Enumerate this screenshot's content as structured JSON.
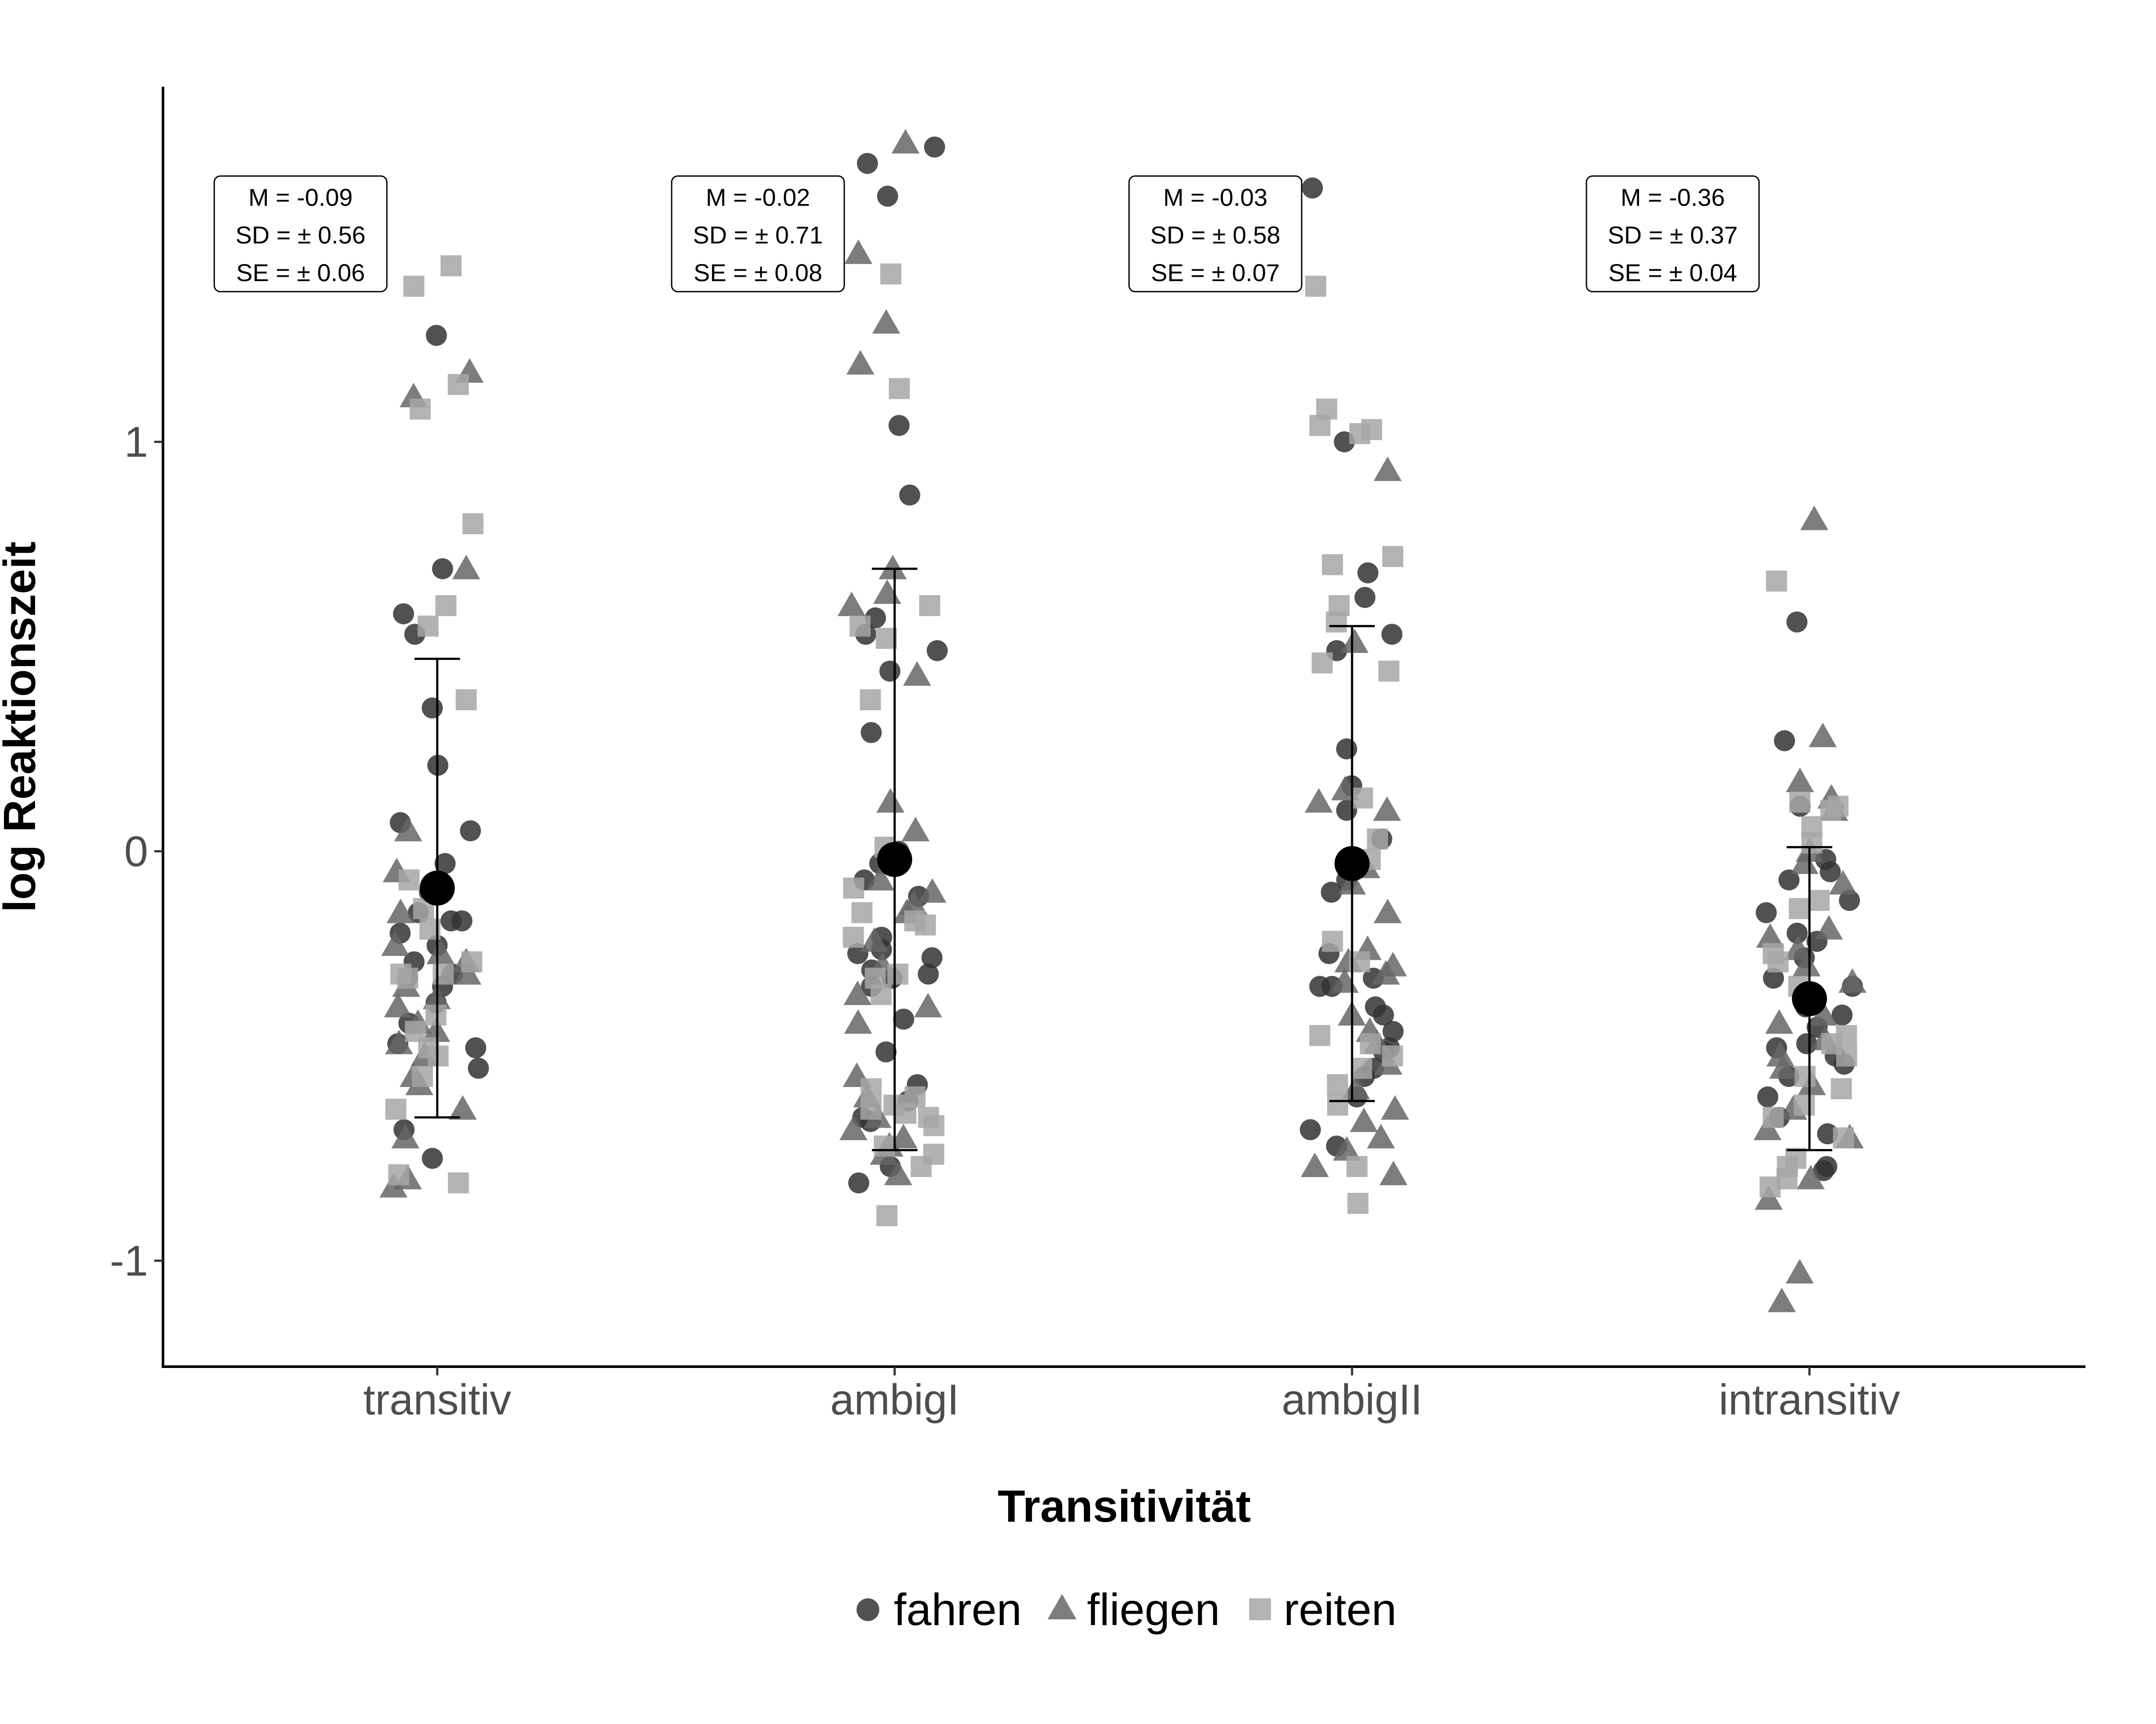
{
  "chart_data": {
    "type": "scatter",
    "xlabel": "Transitivität",
    "ylabel": "log Reaktionszeit",
    "categories": [
      "transitiv",
      "ambigI",
      "ambigII",
      "intransitiv"
    ],
    "yticks": [
      -1,
      0,
      1
    ],
    "ytick_labels": [
      "-1",
      "0",
      "1"
    ],
    "ylim": [
      -1.25,
      1.85
    ],
    "grid": false,
    "legend_position": "bottom",
    "colors": {
      "fahren": "#333333",
      "fliegen": "#666666",
      "reiten": "#a6a6a6",
      "mean": "#000000"
    },
    "series": [
      {
        "name": "fahren",
        "shape": "circle",
        "values": [
          [
            1.26,
            0.69,
            0.58,
            0.53,
            0.35,
            0.21,
            0.07,
            0.05,
            -0.03,
            -0.1,
            -0.15,
            -0.17,
            -0.17,
            -0.2,
            -0.23,
            -0.27,
            -0.3,
            -0.31,
            -0.33,
            -0.37,
            -0.42,
            -0.47,
            -0.48,
            -0.53,
            -0.68,
            -0.75
          ],
          [
            1.72,
            1.68,
            1.6,
            1.04,
            0.87,
            0.57,
            0.53,
            0.49,
            0.44,
            0.29,
            0.0,
            -0.03,
            -0.07,
            -0.11,
            -0.21,
            -0.24,
            -0.25,
            -0.26,
            -0.29,
            -0.3,
            -0.31,
            -0.33,
            -0.41,
            -0.49,
            -0.57,
            -0.61,
            -0.65,
            -0.66,
            -0.77,
            -0.81
          ],
          [
            1.62,
            1.0,
            0.68,
            0.62,
            0.53,
            0.49,
            0.25,
            0.16,
            0.1,
            0.03,
            -0.04,
            -0.07,
            -0.1,
            -0.25,
            -0.31,
            -0.33,
            -0.33,
            -0.38,
            -0.4,
            -0.44,
            -0.48,
            -0.49,
            -0.53,
            -0.55,
            -0.6,
            -0.68,
            -0.72
          ],
          [
            0.56,
            0.27,
            0.11,
            -0.02,
            -0.05,
            -0.07,
            -0.12,
            -0.15,
            -0.2,
            -0.22,
            -0.26,
            -0.31,
            -0.33,
            -0.38,
            -0.4,
            -0.43,
            -0.47,
            -0.48,
            -0.5,
            -0.52,
            -0.55,
            -0.6,
            -0.65,
            -0.69,
            -0.77,
            -0.78
          ]
        ]
      },
      {
        "name": "fliegen",
        "shape": "triangle",
        "values": [
          [
            1.17,
            1.11,
            0.69,
            0.05,
            -0.05,
            -0.15,
            -0.23,
            -0.25,
            -0.27,
            -0.3,
            -0.33,
            -0.36,
            -0.38,
            -0.42,
            -0.44,
            -0.47,
            -0.5,
            -0.55,
            -0.57,
            -0.63,
            -0.7,
            -0.8,
            -0.82
          ],
          [
            1.73,
            1.46,
            1.29,
            1.19,
            0.69,
            0.63,
            0.6,
            0.43,
            0.12,
            0.05,
            -0.07,
            -0.1,
            -0.13,
            -0.15,
            -0.22,
            -0.28,
            -0.35,
            -0.38,
            -0.42,
            -0.55,
            -0.6,
            -0.65,
            -0.68,
            -0.7,
            -0.72,
            -0.74,
            -0.79
          ],
          [
            0.93,
            0.51,
            0.15,
            0.12,
            0.1,
            -0.04,
            -0.08,
            -0.15,
            -0.24,
            -0.27,
            -0.28,
            -0.3,
            -0.32,
            -0.4,
            -0.44,
            -0.47,
            -0.52,
            -0.58,
            -0.63,
            -0.66,
            -0.7,
            -0.73,
            -0.77,
            -0.79
          ],
          [
            0.81,
            0.28,
            0.17,
            0.13,
            0.1,
            0.0,
            -0.03,
            -0.08,
            -0.19,
            -0.21,
            -0.24,
            -0.28,
            -0.32,
            -0.4,
            -0.42,
            -0.46,
            -0.5,
            -0.53,
            -0.57,
            -0.63,
            -0.68,
            -0.7,
            -0.8,
            -0.85,
            -1.03,
            -1.1
          ]
        ]
      },
      {
        "name": "reiten",
        "shape": "square",
        "values": [
          [
            1.43,
            1.38,
            1.14,
            1.08,
            0.8,
            0.6,
            0.55,
            0.37,
            -0.07,
            -0.14,
            -0.19,
            -0.27,
            -0.3,
            -0.3,
            -0.31,
            -0.4,
            -0.44,
            -0.48,
            -0.5,
            -0.55,
            -0.63,
            -0.79,
            -0.81
          ],
          [
            1.41,
            1.13,
            0.6,
            0.55,
            0.52,
            0.37,
            0.01,
            -0.09,
            -0.15,
            -0.17,
            -0.18,
            -0.21,
            -0.3,
            -0.31,
            -0.35,
            -0.58,
            -0.6,
            -0.62,
            -0.63,
            -0.64,
            -0.65,
            -0.67,
            -0.72,
            -0.74,
            -0.77,
            -0.89
          ],
          [
            1.38,
            1.08,
            1.04,
            1.03,
            1.02,
            0.72,
            0.7,
            0.6,
            0.56,
            0.46,
            0.44,
            0.13,
            0.03,
            -0.02,
            -0.22,
            -0.27,
            -0.45,
            -0.47,
            -0.5,
            -0.53,
            -0.57,
            -0.62,
            -0.77,
            -0.86
          ],
          [
            0.66,
            0.12,
            0.11,
            0.1,
            0.06,
            0.02,
            -0.12,
            -0.14,
            -0.25,
            -0.27,
            -0.33,
            -0.45,
            -0.47,
            -0.5,
            -0.55,
            -0.58,
            -0.62,
            -0.65,
            -0.7,
            -0.75,
            -0.77,
            -0.8,
            -0.82
          ]
        ]
      }
    ],
    "summary": [
      {
        "category": "transitiv",
        "mean": -0.09,
        "sd": 0.56,
        "se": 0.06
      },
      {
        "category": "ambigI",
        "mean": -0.02,
        "sd": 0.71,
        "se": 0.08
      },
      {
        "category": "ambigII",
        "mean": -0.03,
        "sd": 0.58,
        "se": 0.07
      },
      {
        "category": "intransitiv",
        "mean": -0.36,
        "sd": 0.37,
        "se": 0.04
      }
    ],
    "annotations": [
      [
        "M = -0.09",
        "SD = ± 0.56",
        "SE = ± 0.06"
      ],
      [
        "M = -0.02",
        "SD = ± 0.71",
        "SE = ± 0.08"
      ],
      [
        "M = -0.03",
        "SD = ± 0.58",
        "SE = ± 0.07"
      ],
      [
        "M = -0.36",
        "SD = ± 0.37",
        "SE = ± 0.04"
      ]
    ]
  }
}
